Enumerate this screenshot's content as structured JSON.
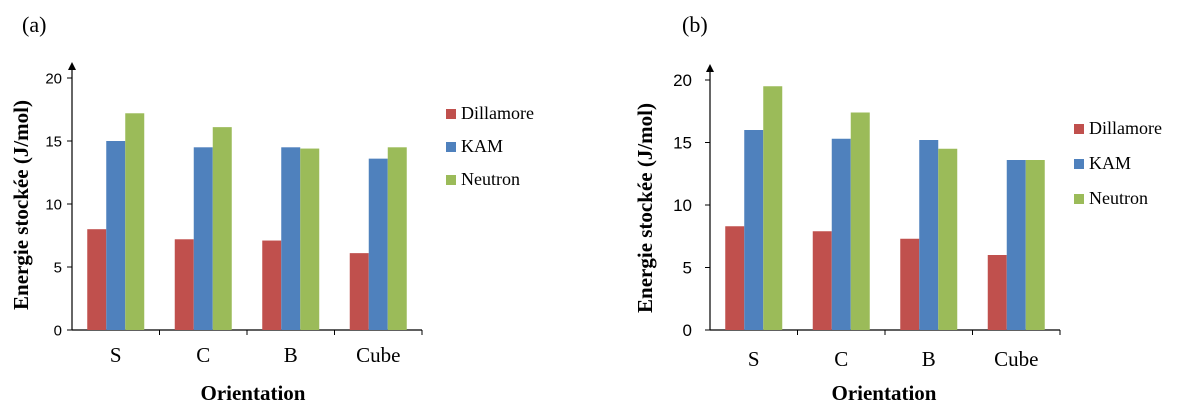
{
  "chart_data": [
    {
      "panel_label": "(a)",
      "type": "bar",
      "categories": [
        "S",
        "C",
        "B",
        "Cube"
      ],
      "series": [
        {
          "name": "Dillamore",
          "values": [
            8.0,
            7.2,
            7.1,
            6.1
          ],
          "color": "#C0504D"
        },
        {
          "name": "KAM",
          "values": [
            15.0,
            14.5,
            14.5,
            13.6
          ],
          "color": "#4F81BD"
        },
        {
          "name": "Neutron",
          "values": [
            17.2,
            16.1,
            14.4,
            14.5
          ],
          "color": "#9BBB59"
        }
      ],
      "xlabel": "Orientation",
      "ylabel": "Energie stockée (J/mol)",
      "ylim": [
        0,
        20
      ],
      "yticks": [
        "0",
        "5",
        "10",
        "15",
        "20"
      ],
      "grid": false,
      "legend": "right"
    },
    {
      "panel_label": "(b)",
      "type": "bar",
      "categories": [
        "S",
        "C",
        "B",
        "Cube"
      ],
      "series": [
        {
          "name": "Dillamore",
          "values": [
            8.3,
            7.9,
            7.3,
            6.0
          ],
          "color": "#C0504D"
        },
        {
          "name": "KAM",
          "values": [
            16.0,
            15.3,
            15.2,
            13.6
          ],
          "color": "#4F81BD"
        },
        {
          "name": "Neutron",
          "values": [
            19.5,
            17.4,
            14.5,
            13.6
          ],
          "color": "#9BBB59"
        }
      ],
      "xlabel": "Orientation",
      "ylabel": "Energie stockée (J/mol)",
      "ylim": [
        0,
        20
      ],
      "yticks": [
        "0",
        "5",
        "10",
        "15",
        "20"
      ],
      "grid": false,
      "legend": "right"
    }
  ]
}
